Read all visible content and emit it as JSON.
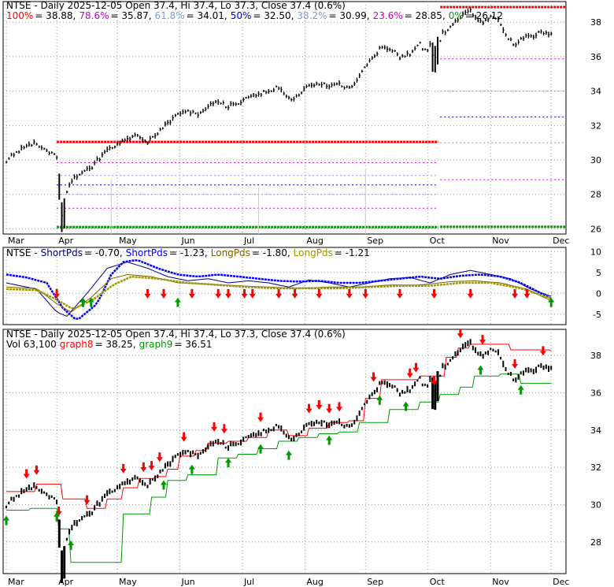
{
  "colors": {
    "price": "#000000",
    "fib_100": "#ff0000",
    "fib_786": "#cc00cc",
    "fib_618": "#7a9bd6",
    "fib_50": "#0000cc",
    "fib_382": "#7a9bd6",
    "fib_236": "#cc00cc",
    "fib_0": "#009900",
    "short_fast": "#000080",
    "short_slow": "#0000ff",
    "long_fast": "#806000",
    "long_slow": "#999900",
    "graph8": "#ff0000",
    "graph9": "#009900",
    "arrow_up": "#009900",
    "arrow_down": "#ff0000",
    "volume": "#cccccc"
  },
  "chart_data": [
    {
      "type": "line",
      "panel": "price-fibonacci",
      "header": {
        "title": "NTSE - Daily 2025-12-05 Open 37.4, Hi 37.4, Lo 37.3, Close 37.4 (0.6%)",
        "levels": [
          {
            "key": "fib_100",
            "label": "100%",
            "value_text": "38.88",
            "value": 38.88
          },
          {
            "key": "fib_786",
            "label": "78.6%",
            "value_text": "35.87",
            "value": 35.87
          },
          {
            "key": "fib_618",
            "label": "61.8%",
            "value_text": "34.01",
            "value": 34.01
          },
          {
            "key": "fib_50",
            "label": "50%",
            "value_text": "32.50",
            "value": 32.5
          },
          {
            "key": "fib_382",
            "label": "38.2%",
            "value_text": "30.99",
            "value": 30.99
          },
          {
            "key": "fib_236",
            "label": "23.6%",
            "value_text": "28.85",
            "value": 28.85
          },
          {
            "key": "fib_0",
            "label": "0%",
            "value_text": "26.12",
            "value": 26.12
          }
        ]
      },
      "x_labels": [
        "Mar",
        "Apr",
        "May",
        "Jun",
        "Jul",
        "Aug",
        "Sep",
        "Oct",
        "Nov",
        "Dec"
      ],
      "x_label_days": [
        0,
        25,
        55,
        86,
        117,
        148,
        178,
        209,
        240,
        270
      ],
      "y_ticks": [
        26,
        28,
        30,
        32,
        34,
        36,
        38
      ],
      "ylim": [
        25.7,
        39.2
      ],
      "level_span_days": [
        [
          25,
          214
        ],
        [
          215,
          277
        ]
      ],
      "levels_after": [
        38.88,
        35.87,
        34.0,
        32.5,
        31.0,
        28.85,
        26.12
      ],
      "levels_before": [
        31.05,
        29.85,
        29.1,
        28.55,
        28.0,
        27.2,
        26.1
      ],
      "price_anchors": [
        [
          0,
          30.0
        ],
        [
          5,
          30.4
        ],
        [
          10,
          30.8
        ],
        [
          15,
          31.0
        ],
        [
          20,
          30.5
        ],
        [
          25,
          30.2
        ],
        [
          27,
          27.4
        ],
        [
          28,
          26.3
        ],
        [
          30,
          28.2
        ],
        [
          33,
          28.9
        ],
        [
          38,
          29.2
        ],
        [
          43,
          29.7
        ],
        [
          50,
          30.6
        ],
        [
          55,
          30.9
        ],
        [
          60,
          31.2
        ],
        [
          65,
          31.4
        ],
        [
          70,
          31.0
        ],
        [
          75,
          31.6
        ],
        [
          80,
          32.1
        ],
        [
          85,
          32.6
        ],
        [
          90,
          32.9
        ],
        [
          95,
          32.5
        ],
        [
          100,
          33.2
        ],
        [
          105,
          33.4
        ],
        [
          110,
          33.1
        ],
        [
          115,
          33.3
        ],
        [
          120,
          33.6
        ],
        [
          125,
          33.8
        ],
        [
          130,
          34.0
        ],
        [
          135,
          34.2
        ],
        [
          140,
          33.5
        ],
        [
          145,
          33.8
        ],
        [
          150,
          34.3
        ],
        [
          155,
          34.5
        ],
        [
          160,
          34.3
        ],
        [
          165,
          34.4
        ],
        [
          170,
          34.1
        ],
        [
          174,
          34.6
        ],
        [
          178,
          35.4
        ],
        [
          182,
          36.0
        ],
        [
          186,
          36.6
        ],
        [
          190,
          36.5
        ],
        [
          195,
          36.0
        ],
        [
          200,
          36.2
        ],
        [
          205,
          36.7
        ],
        [
          208,
          36.3
        ],
        [
          210,
          36.7
        ],
        [
          212,
          35.8
        ],
        [
          216,
          37.3
        ],
        [
          220,
          37.8
        ],
        [
          224,
          38.2
        ],
        [
          227,
          38.6
        ],
        [
          230,
          38.7
        ],
        [
          233,
          38.2
        ],
        [
          236,
          38.0
        ],
        [
          240,
          38.3
        ],
        [
          243,
          38.2
        ],
        [
          246,
          37.6
        ],
        [
          249,
          37.0
        ],
        [
          252,
          36.7
        ],
        [
          255,
          37.0
        ],
        [
          259,
          37.2
        ],
        [
          263,
          37.3
        ],
        [
          266,
          37.4
        ],
        [
          270,
          37.4
        ]
      ]
    },
    {
      "type": "line",
      "panel": "period-oscillator",
      "header": {
        "ticker": "NTSE",
        "items": [
          {
            "key": "short_fast",
            "label": "ShortPds",
            "value_text": "-0.70",
            "value": -0.7
          },
          {
            "key": "short_slow",
            "label": "ShortPds",
            "value_text": "-1.23",
            "value": -1.23
          },
          {
            "key": "long_fast",
            "label": "LongPds",
            "value_text": "-1.80",
            "value": -1.8
          },
          {
            "key": "long_slow",
            "label": "LongPds",
            "value_text": "-1.21",
            "value": -1.21
          }
        ]
      },
      "y_ticks": [
        -5,
        0,
        5,
        10
      ],
      "ylim": [
        -7.5,
        11
      ],
      "series": [
        {
          "key": "short_fast",
          "values": [
            [
              0,
              2.5
            ],
            [
              15,
              1.0
            ],
            [
              25,
              -4.5
            ],
            [
              30,
              -5.5
            ],
            [
              40,
              0
            ],
            [
              50,
              6
            ],
            [
              60,
              7.5
            ],
            [
              70,
              6
            ],
            [
              80,
              4
            ],
            [
              90,
              3
            ],
            [
              100,
              3.5
            ],
            [
              110,
              2.5
            ],
            [
              120,
              3
            ],
            [
              130,
              2.5
            ],
            [
              140,
              1.5
            ],
            [
              150,
              3.2
            ],
            [
              160,
              2.5
            ],
            [
              170,
              1.5
            ],
            [
              180,
              2.5
            ],
            [
              190,
              3.5
            ],
            [
              200,
              3.8
            ],
            [
              210,
              2.5
            ],
            [
              220,
              4.5
            ],
            [
              230,
              5.5
            ],
            [
              240,
              4.5
            ],
            [
              250,
              3.5
            ],
            [
              260,
              1.0
            ],
            [
              270,
              -0.7
            ]
          ]
        },
        {
          "key": "short_slow",
          "values": [
            [
              0,
              4.5
            ],
            [
              10,
              3.8
            ],
            [
              20,
              2.5
            ],
            [
              28,
              -3.5
            ],
            [
              35,
              -6.5
            ],
            [
              45,
              -2.5
            ],
            [
              52,
              4.5
            ],
            [
              58,
              7.5
            ],
            [
              65,
              8
            ],
            [
              75,
              6
            ],
            [
              85,
              4.5
            ],
            [
              95,
              4
            ],
            [
              105,
              4.5
            ],
            [
              115,
              4
            ],
            [
              125,
              3.5
            ],
            [
              135,
              3
            ],
            [
              145,
              2.8
            ],
            [
              155,
              3
            ],
            [
              165,
              2.5
            ],
            [
              175,
              2.5
            ],
            [
              185,
              3
            ],
            [
              195,
              3.5
            ],
            [
              205,
              4
            ],
            [
              215,
              3.5
            ],
            [
              225,
              4.2
            ],
            [
              235,
              4.5
            ],
            [
              245,
              4
            ],
            [
              255,
              2.5
            ],
            [
              265,
              0
            ],
            [
              270,
              -1.23
            ]
          ]
        },
        {
          "key": "long_fast",
          "values": [
            [
              0,
              1.5
            ],
            [
              15,
              1.2
            ],
            [
              25,
              -2.5
            ],
            [
              32,
              -4.5
            ],
            [
              42,
              -1
            ],
            [
              52,
              3.5
            ],
            [
              60,
              4.5
            ],
            [
              72,
              4
            ],
            [
              85,
              2.5
            ],
            [
              100,
              2.2
            ],
            [
              115,
              1.8
            ],
            [
              130,
              1.5
            ],
            [
              145,
              1.2
            ],
            [
              160,
              1.5
            ],
            [
              175,
              1.5
            ],
            [
              190,
              2
            ],
            [
              205,
              2
            ],
            [
              220,
              2.8
            ],
            [
              232,
              3
            ],
            [
              245,
              2.5
            ],
            [
              258,
              1
            ],
            [
              270,
              -1.8
            ]
          ]
        },
        {
          "key": "long_slow",
          "values": [
            [
              0,
              1.0
            ],
            [
              15,
              0.8
            ],
            [
              25,
              -1.5
            ],
            [
              33,
              -3.8
            ],
            [
              43,
              -1.5
            ],
            [
              53,
              2
            ],
            [
              62,
              4
            ],
            [
              75,
              3.5
            ],
            [
              90,
              2.5
            ],
            [
              105,
              2
            ],
            [
              120,
              1.5
            ],
            [
              135,
              1.2
            ],
            [
              150,
              1.2
            ],
            [
              165,
              1.2
            ],
            [
              180,
              1.5
            ],
            [
              195,
              1.8
            ],
            [
              210,
              1.8
            ],
            [
              225,
              2.5
            ],
            [
              240,
              2.5
            ],
            [
              255,
              1.2
            ],
            [
              270,
              -1.21
            ]
          ]
        }
      ],
      "signals_up": [
        38,
        42,
        85,
        270
      ],
      "signals_down": [
        25,
        70,
        78,
        92,
        105,
        110,
        118,
        122,
        135,
        143,
        155,
        170,
        178,
        195,
        212,
        230,
        252,
        258
      ]
    },
    {
      "type": "line",
      "panel": "price-channel",
      "header": {
        "title": "NTSE - Daily 2025-12-05 Open 37.4, Hi 37.4, Lo 37.3, Close 37.4 (0.6%)",
        "vol_label": "Vol 63,100",
        "items": [
          {
            "key": "graph8",
            "label": "graph8",
            "value_text": "38.25",
            "value": 38.25
          },
          {
            "key": "graph9",
            "label": "graph9",
            "value_text": "36.51",
            "value": 36.51
          }
        ]
      },
      "x_labels": [
        "Mar",
        "Apr",
        "May",
        "Jun",
        "Jul",
        "Aug",
        "Sep",
        "Oct",
        "Nov",
        "Dec"
      ],
      "x_label_days": [
        0,
        25,
        55,
        86,
        117,
        148,
        178,
        209,
        240,
        270
      ],
      "y_ticks": [
        28,
        30,
        32,
        34,
        36,
        38
      ],
      "ylim": [
        26.3,
        39.4
      ],
      "graph8": [
        [
          0,
          30.7
        ],
        [
          14,
          30.7
        ],
        [
          15,
          31.1
        ],
        [
          25,
          31.1
        ],
        [
          28,
          30.3
        ],
        [
          40,
          29.8
        ],
        [
          50,
          30.3
        ],
        [
          58,
          30.9
        ],
        [
          66,
          31.4
        ],
        [
          74,
          31.5
        ],
        [
          80,
          31.9
        ],
        [
          86,
          32.6
        ],
        [
          94,
          32.9
        ],
        [
          100,
          33.3
        ],
        [
          110,
          33.4
        ],
        [
          120,
          33.6
        ],
        [
          130,
          34.0
        ],
        [
          140,
          33.7
        ],
        [
          150,
          34.1
        ],
        [
          160,
          34.4
        ],
        [
          170,
          34.5
        ],
        [
          178,
          35.7
        ],
        [
          186,
          36.7
        ],
        [
          196,
          36.7
        ],
        [
          205,
          36.9
        ],
        [
          210,
          36.9
        ],
        [
          218,
          37.9
        ],
        [
          224,
          38.4
        ],
        [
          230,
          38.6
        ],
        [
          250,
          38.3
        ],
        [
          270,
          38.25
        ]
      ],
      "graph9": [
        [
          0,
          29.7
        ],
        [
          12,
          29.8
        ],
        [
          22,
          29.8
        ],
        [
          26,
          28.7
        ],
        [
          32,
          26.9
        ],
        [
          55,
          26.9
        ],
        [
          58,
          29.5
        ],
        [
          72,
          30.4
        ],
        [
          80,
          31.3
        ],
        [
          90,
          31.6
        ],
        [
          105,
          32.5
        ],
        [
          115,
          32.7
        ],
        [
          125,
          33.0
        ],
        [
          135,
          33.4
        ],
        [
          145,
          33.6
        ],
        [
          155,
          33.8
        ],
        [
          165,
          33.9
        ],
        [
          175,
          34.4
        ],
        [
          190,
          35.1
        ],
        [
          205,
          35.5
        ],
        [
          215,
          35.9
        ],
        [
          225,
          36.3
        ],
        [
          232,
          36.9
        ],
        [
          245,
          37.0
        ],
        [
          255,
          36.5
        ],
        [
          270,
          36.51
        ]
      ],
      "signals_up": [
        0,
        25,
        32,
        78,
        92,
        110,
        126,
        140,
        160,
        185,
        198,
        235,
        255
      ],
      "signals_down": [
        10,
        15,
        26,
        40,
        58,
        68,
        72,
        76,
        88,
        103,
        108,
        126,
        150,
        155,
        160,
        165,
        182,
        200,
        203,
        212,
        225,
        236,
        252,
        266
      ]
    }
  ]
}
